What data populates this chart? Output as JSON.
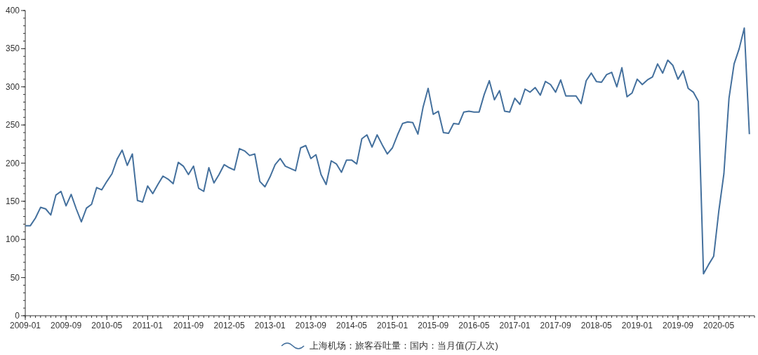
{
  "chart_data": {
    "type": "line",
    "x": [
      "2009-01",
      "2009-02",
      "2009-03",
      "2009-04",
      "2009-05",
      "2009-06",
      "2009-07",
      "2009-08",
      "2009-09",
      "2009-10",
      "2009-11",
      "2009-12",
      "2010-01",
      "2010-02",
      "2010-03",
      "2010-04",
      "2010-05",
      "2010-06",
      "2010-07",
      "2010-08",
      "2010-09",
      "2010-10",
      "2010-11",
      "2010-12",
      "2011-01",
      "2011-02",
      "2011-03",
      "2011-04",
      "2011-05",
      "2011-06",
      "2011-07",
      "2011-08",
      "2011-09",
      "2011-10",
      "2011-11",
      "2011-12",
      "2012-01",
      "2012-02",
      "2012-03",
      "2012-04",
      "2012-05",
      "2012-06",
      "2012-07",
      "2012-08",
      "2012-09",
      "2012-10",
      "2012-11",
      "2012-12",
      "2013-01",
      "2013-02",
      "2013-03",
      "2013-04",
      "2013-05",
      "2013-06",
      "2013-07",
      "2013-08",
      "2013-09",
      "2013-10",
      "2013-11",
      "2013-12",
      "2014-01",
      "2014-02",
      "2014-03",
      "2014-04",
      "2014-05",
      "2014-06",
      "2014-07",
      "2014-08",
      "2014-09",
      "2014-10",
      "2014-11",
      "2014-12",
      "2015-01",
      "2015-02",
      "2015-03",
      "2015-04",
      "2015-05",
      "2015-06",
      "2015-07",
      "2015-08",
      "2015-09",
      "2015-10",
      "2015-11",
      "2015-12",
      "2016-01",
      "2016-02",
      "2016-03",
      "2016-04",
      "2016-05",
      "2016-06",
      "2016-07",
      "2016-08",
      "2016-09",
      "2016-10",
      "2016-11",
      "2016-12",
      "2017-01",
      "2017-02",
      "2017-03",
      "2017-04",
      "2017-05",
      "2017-06",
      "2017-07",
      "2017-08",
      "2017-09",
      "2017-10",
      "2017-11",
      "2017-12",
      "2018-01",
      "2018-02",
      "2018-03",
      "2018-04",
      "2018-05",
      "2018-06",
      "2018-07",
      "2018-08",
      "2018-09",
      "2018-10",
      "2018-11",
      "2018-12",
      "2019-01",
      "2019-02",
      "2019-03",
      "2019-04",
      "2019-05",
      "2019-06",
      "2019-07",
      "2019-08",
      "2019-09",
      "2019-10",
      "2019-11",
      "2019-12",
      "2020-01",
      "2020-02",
      "2020-03",
      "2020-04",
      "2020-05",
      "2020-06",
      "2020-07",
      "2020-08",
      "2020-09",
      "2020-10",
      "2020-11"
    ],
    "series": [
      {
        "name": "上海机场：旅客吞吐量：国内：当月值(万人次)",
        "color": "#44709d",
        "values": [
          118,
          118,
          128,
          142,
          140,
          132,
          158,
          163,
          144,
          159,
          140,
          123,
          141,
          146,
          168,
          165,
          176,
          186,
          205,
          217,
          197,
          212,
          151,
          149,
          170,
          160,
          172,
          183,
          179,
          173,
          201,
          196,
          185,
          196,
          167,
          163,
          194,
          174,
          185,
          198,
          194,
          191,
          219,
          216,
          210,
          212,
          176,
          169,
          182,
          198,
          206,
          196,
          193,
          190,
          220,
          223,
          206,
          211,
          185,
          172,
          203,
          199,
          188,
          204,
          204,
          199,
          232,
          237,
          221,
          237,
          224,
          212,
          220,
          237,
          252,
          254,
          253,
          238,
          273,
          298,
          264,
          268,
          240,
          239,
          252,
          251,
          267,
          268,
          267,
          267,
          290,
          308,
          283,
          295,
          268,
          267,
          285,
          277,
          297,
          293,
          299,
          289,
          307,
          303,
          293,
          309,
          288,
          288,
          288,
          278,
          308,
          318,
          307,
          306,
          316,
          319,
          300,
          325,
          287,
          292,
          310,
          303,
          309,
          313,
          330,
          318,
          335,
          328,
          310,
          321,
          298,
          293,
          281,
          55,
          67,
          78,
          137,
          186,
          285,
          330,
          350,
          377,
          238
        ]
      }
    ],
    "xlim": [
      "2009-01",
      "2020-12"
    ],
    "xticks": [
      "2009-01",
      "2009-09",
      "2010-05",
      "2011-01",
      "2011-09",
      "2012-05",
      "2013-01",
      "2013-09",
      "2014-05",
      "2015-01",
      "2015-09",
      "2016-05",
      "2017-01",
      "2017-09",
      "2018-05",
      "2019-01",
      "2019-09",
      "2020-05"
    ],
    "ylim": [
      0,
      400
    ],
    "yticks": [
      0,
      50,
      100,
      150,
      200,
      250,
      300,
      350,
      400
    ],
    "grid": false,
    "legend": "bottom",
    "marker": "none",
    "line_style": "solid"
  }
}
